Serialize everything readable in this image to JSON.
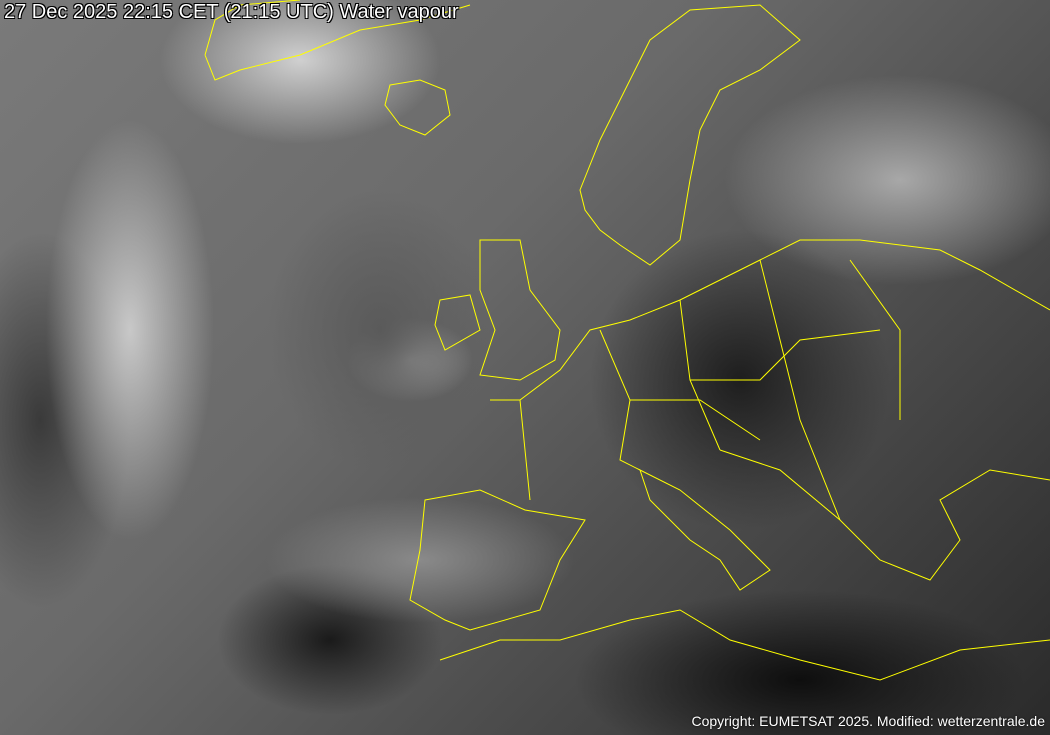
{
  "image": {
    "title": "27 Dec 2025 22:15 CET (21:15 UTC) Water vapour",
    "copyright": "Copyright: EUMETSAT 2025. Modified: wetterzentrale.de",
    "colors": {
      "borders": "#ffff00",
      "text": "#ffffff"
    }
  }
}
